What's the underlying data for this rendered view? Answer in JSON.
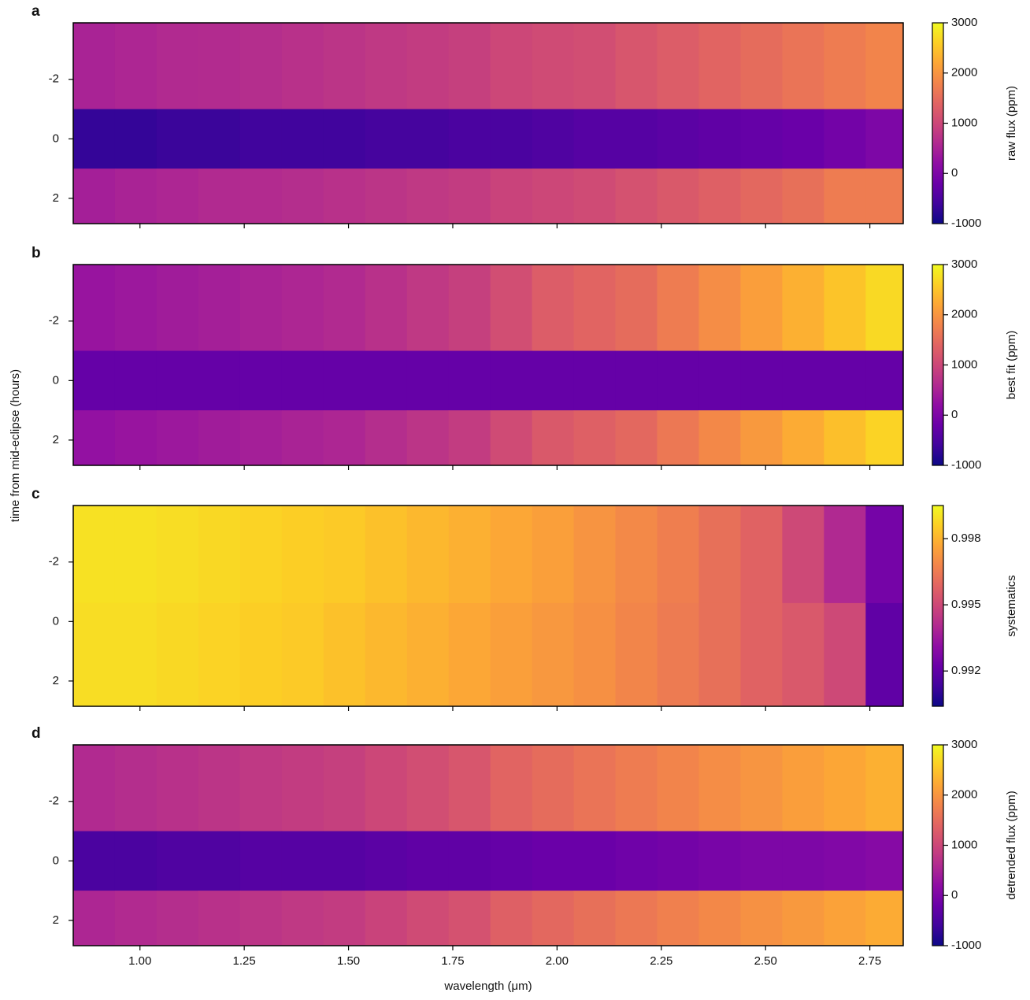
{
  "ylabel": "time from mid-eclipse (hours)",
  "chart_data": [
    {
      "type": "heatmap",
      "panel_label": "a",
      "colorbar_label": "raw flux (ppm)",
      "colormap": "plasma",
      "x_bins": [
        0.84,
        0.94,
        1.04,
        1.14,
        1.24,
        1.34,
        1.44,
        1.54,
        1.64,
        1.74,
        1.84,
        1.94,
        2.04,
        2.14,
        2.24,
        2.34,
        2.44,
        2.54,
        2.64,
        2.74,
        2.83
      ],
      "y_bins": [
        -3.9,
        -1,
        1,
        2.85
      ],
      "z": [
        [
          500,
          550,
          600,
          620,
          650,
          700,
          750,
          800,
          850,
          900,
          1000,
          1050,
          1100,
          1200,
          1300,
          1400,
          1500,
          1600,
          1700,
          1800
        ],
        [
          -700,
          -700,
          -650,
          -650,
          -600,
          -600,
          -600,
          -550,
          -550,
          -500,
          -500,
          -450,
          -400,
          -400,
          -350,
          -300,
          -250,
          -200,
          -100,
          0
        ],
        [
          450,
          500,
          550,
          600,
          620,
          650,
          700,
          750,
          800,
          850,
          950,
          1000,
          1050,
          1150,
          1250,
          1350,
          1450,
          1550,
          1700,
          1700
        ]
      ],
      "zlim": [
        -1000,
        3000
      ],
      "zticks": [
        -1000,
        0,
        1000,
        2000,
        3000
      ],
      "xlim": [
        0.84,
        2.83
      ],
      "ylim": [
        2.85,
        -3.9
      ],
      "xticks": [
        1,
        1.25,
        1.5,
        1.75,
        2,
        2.25,
        2.5,
        2.75
      ],
      "yticks": [
        -2,
        0,
        2
      ]
    },
    {
      "type": "heatmap",
      "panel_label": "b",
      "colorbar_label": "best fit (ppm)",
      "colormap": "plasma",
      "x_bins": [
        0.84,
        0.94,
        1.04,
        1.14,
        1.24,
        1.34,
        1.44,
        1.54,
        1.64,
        1.74,
        1.84,
        1.94,
        2.04,
        2.14,
        2.24,
        2.34,
        2.44,
        2.54,
        2.64,
        2.74,
        2.83
      ],
      "y_bins": [
        -3.9,
        -1,
        1,
        2.85
      ],
      "z": [
        [
          300,
          350,
          400,
          450,
          500,
          550,
          600,
          700,
          800,
          900,
          1100,
          1300,
          1400,
          1500,
          1700,
          1900,
          2100,
          2300,
          2500,
          2700
        ],
        [
          -250,
          -250,
          -250,
          -250,
          -250,
          -250,
          -250,
          -250,
          -250,
          -250,
          -250,
          -250,
          -250,
          -250,
          -250,
          -250,
          -250,
          -250,
          -250,
          -250
        ],
        [
          250,
          300,
          350,
          400,
          450,
          500,
          550,
          650,
          750,
          850,
          1050,
          1250,
          1350,
          1450,
          1650,
          1850,
          2050,
          2250,
          2450,
          2650
        ]
      ],
      "zlim": [
        -1000,
        3000
      ],
      "zticks": [
        -1000,
        0,
        1000,
        2000,
        3000
      ],
      "xlim": [
        0.84,
        2.83
      ],
      "ylim": [
        2.85,
        -3.9
      ],
      "xticks": [
        1,
        1.25,
        1.5,
        1.75,
        2,
        2.25,
        2.5,
        2.75
      ],
      "yticks": [
        -2,
        0,
        2
      ]
    },
    {
      "type": "heatmap",
      "panel_label": "c",
      "colorbar_label": "systematics",
      "colormap": "plasma",
      "x_bins": [
        0.84,
        0.94,
        1.04,
        1.14,
        1.24,
        1.34,
        1.44,
        1.54,
        1.64,
        1.74,
        1.84,
        1.94,
        2.04,
        2.14,
        2.24,
        2.34,
        2.44,
        2.54,
        2.64,
        2.74,
        2.83
      ],
      "y_bins": [
        -3.9,
        -0.62,
        2.85
      ],
      "z": [
        [
          0.999,
          0.999,
          0.9989,
          0.9988,
          0.9987,
          0.9986,
          0.9985,
          0.9983,
          0.9981,
          0.9979,
          0.9977,
          0.9975,
          0.9972,
          0.9969,
          0.9966,
          0.9962,
          0.9958,
          0.995,
          0.994,
          0.9925
        ],
        [
          0.9989,
          0.9989,
          0.9988,
          0.9987,
          0.9986,
          0.9985,
          0.9983,
          0.9981,
          0.9979,
          0.9977,
          0.9975,
          0.9973,
          0.9971,
          0.9968,
          0.9965,
          0.9962,
          0.9958,
          0.9955,
          0.995,
          0.992
        ]
      ],
      "zlim": [
        0.9904,
        0.9995
      ],
      "zticks": [
        0.992,
        0.995,
        0.998
      ],
      "xlim": [
        0.84,
        2.83
      ],
      "ylim": [
        2.85,
        -3.9
      ],
      "xticks": [
        1,
        1.25,
        1.5,
        1.75,
        2,
        2.25,
        2.5,
        2.75
      ],
      "yticks": [
        -2,
        0,
        2
      ]
    },
    {
      "type": "heatmap",
      "panel_label": "d",
      "colorbar_label": "detrended flux (ppm)",
      "colormap": "plasma",
      "x_bins": [
        0.84,
        0.94,
        1.04,
        1.14,
        1.24,
        1.34,
        1.44,
        1.54,
        1.64,
        1.74,
        1.84,
        1.94,
        2.04,
        2.14,
        2.24,
        2.34,
        2.44,
        2.54,
        2.64,
        2.74,
        2.83
      ],
      "y_bins": [
        -3.9,
        -1,
        1,
        2.85
      ],
      "z": [
        [
          600,
          650,
          700,
          750,
          800,
          850,
          900,
          1000,
          1100,
          1200,
          1400,
          1500,
          1600,
          1700,
          1800,
          1900,
          2000,
          2100,
          2200,
          2300
        ],
        [
          -500,
          -500,
          -450,
          -450,
          -400,
          -400,
          -400,
          -350,
          -300,
          -300,
          -250,
          -200,
          -200,
          -150,
          -100,
          -50,
          0,
          0,
          50,
          100
        ],
        [
          550,
          600,
          650,
          700,
          750,
          800,
          850,
          950,
          1050,
          1150,
          1350,
          1450,
          1550,
          1650,
          1750,
          1850,
          1950,
          2050,
          2150,
          2250
        ]
      ],
      "zlim": [
        -1000,
        3000
      ],
      "zticks": [
        -1000,
        0,
        1000,
        2000,
        3000
      ],
      "xlim": [
        0.84,
        2.83
      ],
      "ylim": [
        2.85,
        -3.9
      ],
      "xlabel": "wavelength (μm)",
      "xticks": [
        {
          "value": 1,
          "label": "1.00"
        },
        {
          "value": 1.25,
          "label": "1.25"
        },
        {
          "value": 1.5,
          "label": "1.50"
        },
        {
          "value": 1.75,
          "label": "1.75"
        },
        {
          "value": 2,
          "label": "2.00"
        },
        {
          "value": 2.25,
          "label": "2.25"
        },
        {
          "value": 2.5,
          "label": "2.50"
        },
        {
          "value": 2.75,
          "label": "2.75"
        }
      ],
      "yticks": [
        -2,
        0,
        2
      ]
    }
  ]
}
